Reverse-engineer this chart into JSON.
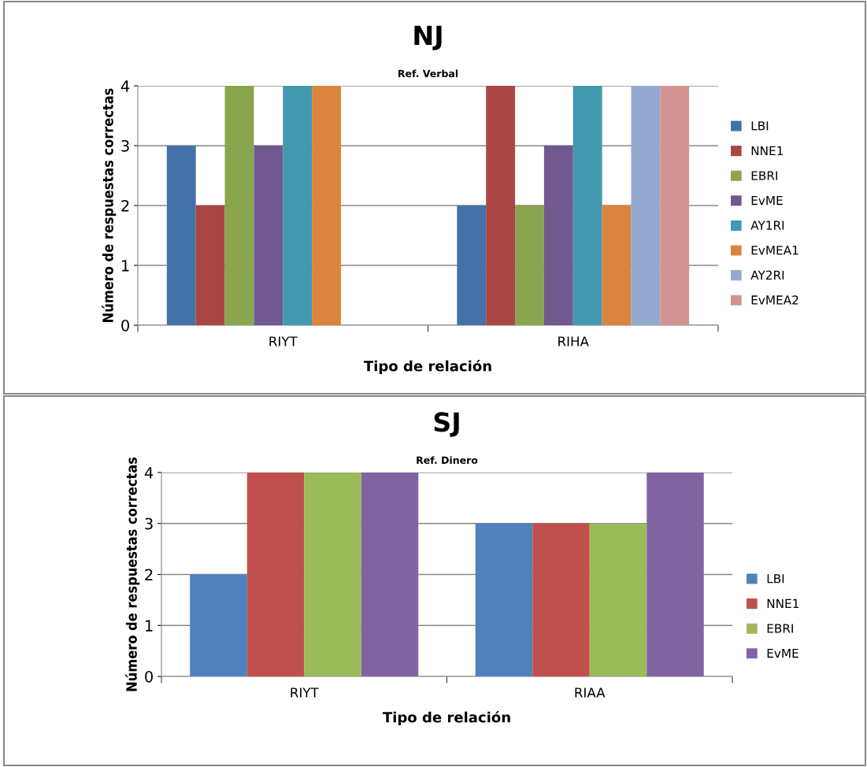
{
  "chart_data": [
    {
      "type": "bar",
      "title": "NJ",
      "subtitle": "Ref. Verbal",
      "xlabel": "Tipo de relación",
      "ylabel": "Número de respuestas correctas",
      "categories": [
        "RIYT",
        "RIHA"
      ],
      "ylim": [
        0,
        4
      ],
      "yticks": [
        0,
        1,
        2,
        3,
        4
      ],
      "grid": "y",
      "legend": "right",
      "series": [
        {
          "name": "LBI",
          "color": "#4472a8",
          "values": [
            3,
            2
          ]
        },
        {
          "name": "NNE1",
          "color": "#a94644",
          "values": [
            2,
            4
          ]
        },
        {
          "name": "EBRI",
          "color": "#89a54e",
          "values": [
            4,
            2
          ]
        },
        {
          "name": "EvME",
          "color": "#71588f",
          "values": [
            3,
            3
          ]
        },
        {
          "name": "AY1RI",
          "color": "#4198af",
          "values": [
            4,
            4
          ]
        },
        {
          "name": "EvMEA1",
          "color": "#db843d",
          "values": [
            4,
            2
          ]
        },
        {
          "name": "AY2RI",
          "color": "#93a9cf",
          "values": [
            null,
            4
          ]
        },
        {
          "name": "EvMEA2",
          "color": "#d19392",
          "values": [
            null,
            4
          ]
        }
      ]
    },
    {
      "type": "bar",
      "title": "SJ",
      "subtitle": "Ref. Dinero",
      "xlabel": "Tipo de relación",
      "ylabel": "Número de respuestas correctas",
      "categories": [
        "RIYT",
        "RIAA"
      ],
      "ylim": [
        0,
        4
      ],
      "yticks": [
        0,
        1,
        2,
        3,
        4
      ],
      "grid": "y",
      "legend": "right",
      "series": [
        {
          "name": "LBI",
          "color": "#4f81bd",
          "values": [
            2,
            3
          ]
        },
        {
          "name": "NNE1",
          "color": "#c0504d",
          "values": [
            4,
            3
          ]
        },
        {
          "name": "EBRI",
          "color": "#9bbb59",
          "values": [
            4,
            3
          ]
        },
        {
          "name": "EvME",
          "color": "#8064a2",
          "values": [
            4,
            4
          ]
        }
      ]
    }
  ]
}
